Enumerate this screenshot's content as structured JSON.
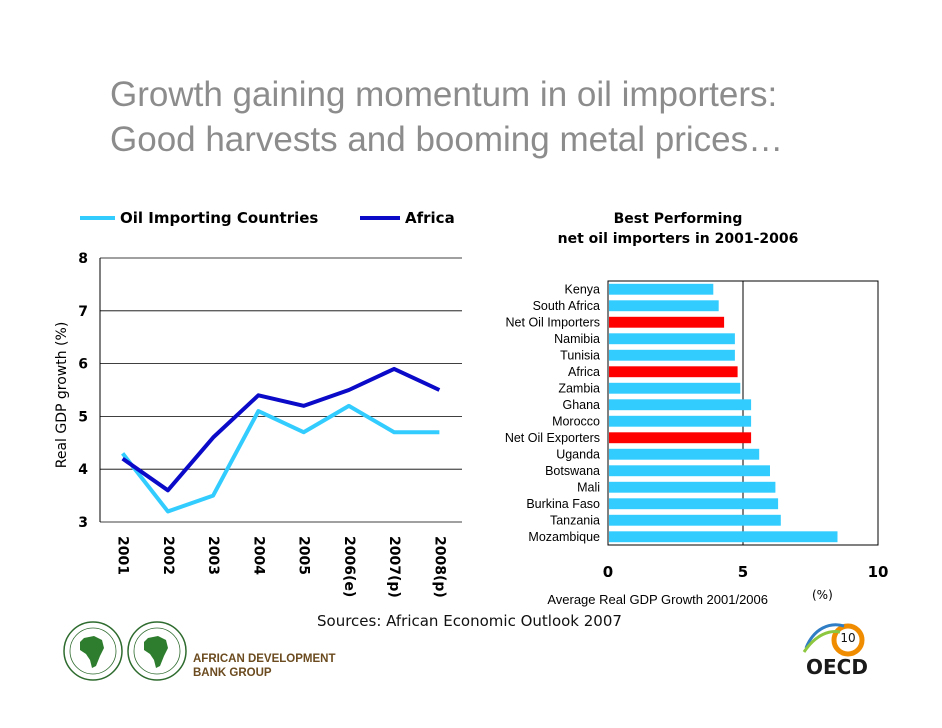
{
  "slide": {
    "title_line1": "Growth gaining momentum in oil importers:",
    "title_line2": "Good harvests and booming metal prices…",
    "source": "Sources: African Economic Outlook 2007",
    "page_number": "10",
    "org_name_line1": "AFRICAN DEVELOPMENT",
    "org_name_line2": "BANK GROUP",
    "oecd_label": "OECD"
  },
  "colors": {
    "light_blue": "#33ccff",
    "dark_blue": "#0a0ac8",
    "red": "#ff0000",
    "title_gray": "#8c8c8c"
  },
  "chart_data": [
    {
      "type": "line",
      "title": "",
      "categories": [
        "2001",
        "2002",
        "2003",
        "2004",
        "2005",
        "2006(e)",
        "2007(p)",
        "2008(p)"
      ],
      "series": [
        {
          "name": "Oil Importing Countries",
          "values": [
            4.3,
            3.2,
            3.5,
            5.1,
            4.7,
            5.2,
            4.7,
            4.7
          ]
        },
        {
          "name": "Africa",
          "values": [
            4.2,
            3.6,
            4.6,
            5.4,
            5.2,
            5.5,
            5.9,
            5.5
          ]
        }
      ],
      "xlabel": "",
      "ylabel": "Real GDP growth (%)",
      "ylim": [
        3,
        8
      ],
      "yticks": [
        3,
        4,
        5,
        6,
        7,
        8
      ],
      "grid": true,
      "legend": "top"
    },
    {
      "type": "bar",
      "orientation": "horizontal",
      "title_line1": "Best Performing",
      "title_line2": "net oil importers in 2001-2006",
      "categories": [
        "Kenya",
        "South Africa",
        "Net Oil Importers",
        "Namibia",
        "Tunisia",
        "Africa",
        "Zambia",
        "Ghana",
        "Morocco",
        "Net Oil Exporters",
        "Uganda",
        "Botswana",
        "Mali",
        "Burkina Faso",
        "Tanzania",
        "Mozambique"
      ],
      "values": [
        3.9,
        4.1,
        4.3,
        4.7,
        4.7,
        4.8,
        4.9,
        5.3,
        5.3,
        5.3,
        5.6,
        6.0,
        6.2,
        6.3,
        6.4,
        8.5
      ],
      "highlight": [
        "Net Oil Importers",
        "Africa",
        "Net Oil Exporters"
      ],
      "xlabel": "Average Real GDP Growth 2001/2006",
      "xlabel_unit": "(%)",
      "xlim": [
        0,
        10
      ],
      "xticks": [
        0,
        5,
        10
      ],
      "reference_line": 5
    }
  ]
}
